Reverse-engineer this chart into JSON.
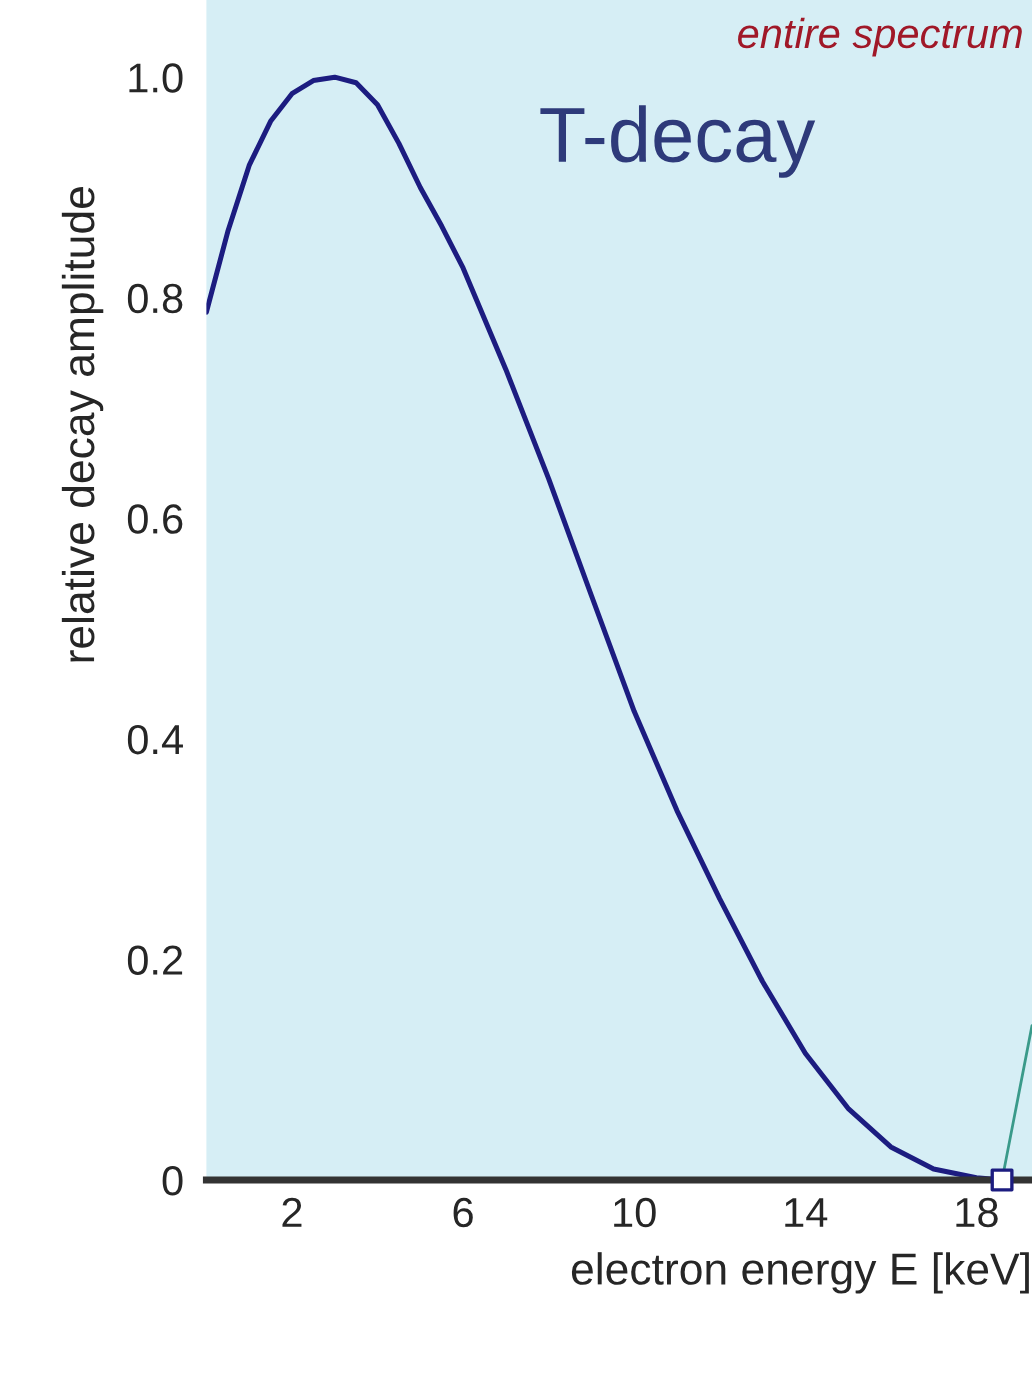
{
  "chart_data": {
    "type": "line",
    "xlabel": "electron energy E [keV]",
    "ylabel": "relative decay amplitude",
    "title": "T-decay",
    "annotations": [
      "entire spectrum"
    ],
    "series": [
      {
        "color": "#1c1c80",
        "marker": "none",
        "x": [
          0,
          0.5,
          1,
          1.5,
          2,
          2.5,
          3,
          3.5,
          4,
          4.5,
          5,
          5.5,
          6,
          7,
          8,
          9,
          10,
          11,
          12,
          13,
          14,
          15,
          16,
          17,
          18,
          18.6
        ],
        "values": [
          0.787,
          0.86,
          0.92,
          0.96,
          0.985,
          0.997,
          1.0,
          0.995,
          0.975,
          0.94,
          0.9,
          0.865,
          0.827,
          0.735,
          0.636,
          0.53,
          0.425,
          0.335,
          0.255,
          0.18,
          0.115,
          0.065,
          0.03,
          0.01,
          0.002,
          0
        ]
      },
      {
        "type": "scatter",
        "color": "#1c1c80",
        "marker": "square",
        "x": [
          18.6
        ],
        "values": [
          0
        ]
      }
    ],
    "xlim": [
      0,
      19.3
    ],
    "ylim": [
      0,
      1.07
    ],
    "xticks": [
      2,
      6,
      10,
      14,
      18
    ],
    "yticks": [
      0,
      0.2,
      0.4,
      0.6,
      0.8,
      {
        "value": 1.0,
        "label": "1.0"
      }
    ],
    "grid": false,
    "legend": false
  }
}
